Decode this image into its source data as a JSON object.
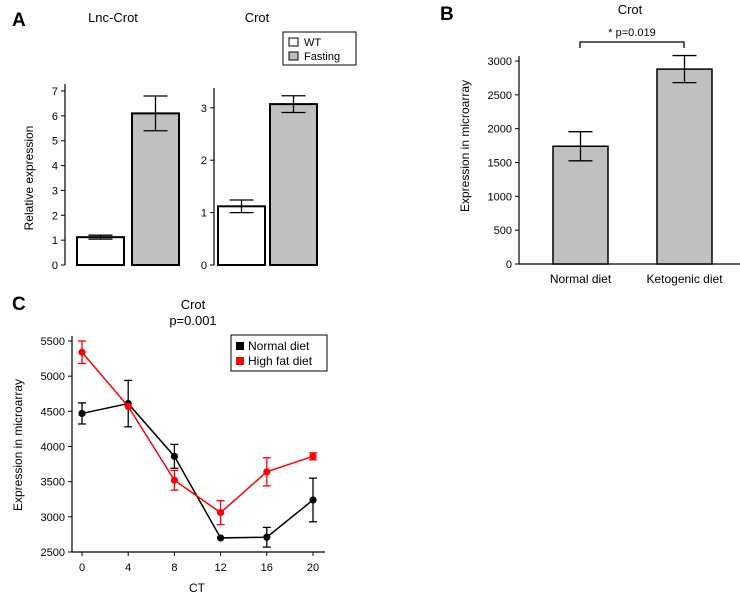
{
  "panels": {
    "A": {
      "letter": "A",
      "legend": {
        "wt": "WT",
        "fasting": "Fasting"
      }
    },
    "B": {
      "letter": "B"
    },
    "C": {
      "letter": "C"
    }
  },
  "chart_data": [
    {
      "id": "A1",
      "type": "bar",
      "title": "Lnc-Crot",
      "ylabel": "Relative expression",
      "xlabel": "",
      "ylim": [
        0,
        7
      ],
      "yticks": [
        0,
        1,
        2,
        3,
        4,
        5,
        6,
        7
      ],
      "categories": [
        "WT",
        "Fasting"
      ],
      "values": [
        1.12,
        6.1
      ],
      "errors": [
        0.08,
        0.7
      ],
      "colors": [
        "#ffffff",
        "#c0c0c0"
      ],
      "grid": false
    },
    {
      "id": "A2",
      "type": "bar",
      "title": "Crot",
      "ylabel": "",
      "xlabel": "",
      "ylim": [
        0,
        3.2
      ],
      "yticks": [
        0,
        1,
        2,
        3
      ],
      "categories": [
        "WT",
        "Fasting"
      ],
      "values": [
        1.12,
        3.07
      ],
      "errors": [
        0.12,
        0.16
      ],
      "colors": [
        "#ffffff",
        "#c0c0c0"
      ],
      "grid": false
    },
    {
      "id": "B",
      "type": "bar",
      "title": "Crot",
      "annotation": "* p=0.019",
      "ylabel": "Expression in microarray",
      "xlabel": "",
      "ylim": [
        0,
        3000
      ],
      "yticks": [
        0,
        500,
        1000,
        1500,
        2000,
        2500,
        3000
      ],
      "categories": [
        "Normal diet",
        "Ketogenic diet"
      ],
      "values": [
        1740,
        2880
      ],
      "errors": [
        215,
        200
      ],
      "colors": [
        "#c0c0c0",
        "#c0c0c0"
      ],
      "grid": false
    },
    {
      "id": "C",
      "type": "line",
      "title": "Crot",
      "subtitle": "p=0.001",
      "xlabel": "CT",
      "ylabel": "Expression in microarray",
      "xlim": [
        0,
        20
      ],
      "ylim": [
        2500,
        5500
      ],
      "xticks": [
        0,
        4,
        8,
        12,
        16,
        20
      ],
      "yticks": [
        2500,
        3000,
        3500,
        4000,
        4500,
        5000,
        5500
      ],
      "x": [
        0,
        4,
        8,
        12,
        16,
        20
      ],
      "series": [
        {
          "name": "Normal diet",
          "color": "#000000",
          "values": [
            4470,
            4610,
            3860,
            2700,
            2710,
            3240
          ],
          "errors": [
            150,
            330,
            170,
            0,
            140,
            310
          ]
        },
        {
          "name": "High fat diet",
          "color": "#ff0000",
          "values": [
            5340,
            4570,
            3520,
            3060,
            3640,
            3860
          ],
          "errors": [
            160,
            0,
            140,
            170,
            200,
            50
          ]
        }
      ],
      "legend": "top-right",
      "grid": false
    }
  ]
}
